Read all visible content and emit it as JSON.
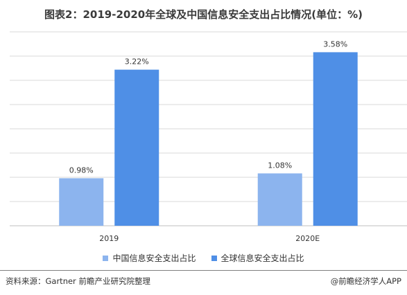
{
  "title": "图表2：2019-2020年全球及中国信息安全支出占比情况(单位：%)",
  "footer": {
    "source": "资料来源：Gartner 前瞻产业研究院整理",
    "credit": "@前瞻经济学人APP"
  },
  "colors": {
    "china": "#8cb4ee",
    "global": "#4f8fe6",
    "grid": "#d9d9d9",
    "axis": "#bfbfbf"
  },
  "chart_data": {
    "type": "bar",
    "categories": [
      "2019",
      "2020E"
    ],
    "series": [
      {
        "name": "中国信息安全支出占比",
        "values": [
          0.98,
          1.08
        ],
        "labels": [
          "0.98%",
          "1.08%"
        ]
      },
      {
        "name": "全球信息安全支出占比",
        "values": [
          3.22,
          3.58
        ],
        "labels": [
          "3.22%",
          "3.58%"
        ]
      }
    ],
    "ylim": [
      0,
      4
    ],
    "grid": true,
    "legend_position": "bottom",
    "xlabel": "",
    "ylabel": ""
  }
}
